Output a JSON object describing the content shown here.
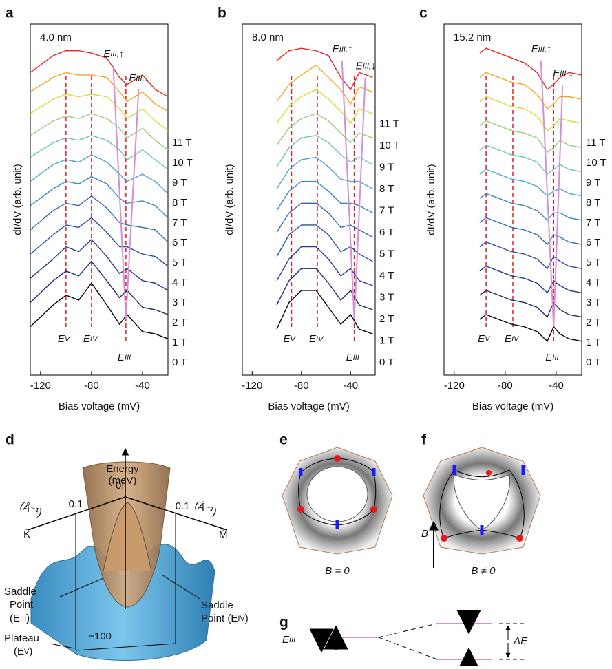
{
  "chart_data": [
    {
      "type": "line",
      "label": "a",
      "annotation": "4.0 nm",
      "xlabel": "Bias voltage (mV)",
      "ylabel": "dI/dV (arb. unit)",
      "xlim": [
        -128,
        -20
      ],
      "xticks": [
        -120,
        -80,
        -40
      ],
      "ylim": [
        -1.5,
        13
      ],
      "x": [
        -128,
        -110,
        -100,
        -90,
        -80,
        -68,
        -58,
        -52,
        -40,
        -30,
        -20
      ],
      "series": [
        {
          "name": "0 T",
          "color": "#000000",
          "values": [
            0.5,
            1.4,
            1.8,
            1.6,
            2.3,
            1.4,
            0.6,
            1.0,
            0.3,
            0.2,
            0.0
          ]
        },
        {
          "name": "1 T",
          "color": "#1b2a6b",
          "values": [
            1.5,
            2.4,
            2.8,
            2.6,
            3.2,
            2.4,
            1.7,
            2.0,
            1.3,
            1.2,
            1.0
          ]
        },
        {
          "name": "2 T",
          "color": "#22398a",
          "values": [
            2.5,
            3.3,
            3.8,
            3.6,
            4.1,
            3.4,
            2.7,
            2.9,
            2.4,
            2.3,
            2.0
          ]
        },
        {
          "name": "3 T",
          "color": "#2b4fa0",
          "values": [
            3.5,
            4.3,
            4.7,
            4.6,
            5.0,
            4.4,
            3.8,
            3.8,
            3.5,
            3.4,
            3.0
          ]
        },
        {
          "name": "4 T",
          "color": "#3467b6",
          "values": [
            4.5,
            5.3,
            5.6,
            5.5,
            5.9,
            5.4,
            4.8,
            4.7,
            4.6,
            4.5,
            4.0
          ]
        },
        {
          "name": "5 T",
          "color": "#3c84c6",
          "values": [
            5.5,
            6.2,
            6.5,
            6.4,
            6.7,
            6.4,
            5.8,
            5.6,
            5.7,
            5.5,
            5.0
          ]
        },
        {
          "name": "6 T",
          "color": "#4fa4cf",
          "values": [
            6.5,
            7.2,
            7.4,
            7.3,
            7.6,
            7.3,
            6.8,
            6.5,
            6.8,
            6.5,
            6.0
          ]
        },
        {
          "name": "7 T",
          "color": "#6fc0c0",
          "values": [
            7.5,
            8.1,
            8.3,
            8.2,
            8.4,
            8.2,
            7.8,
            7.4,
            7.8,
            7.4,
            7.0
          ]
        },
        {
          "name": "8 T",
          "color": "#98cc7a",
          "values": [
            8.4,
            9.0,
            9.2,
            9.1,
            9.3,
            9.1,
            8.7,
            8.3,
            8.7,
            8.2,
            7.8
          ]
        },
        {
          "name": "9 T",
          "color": "#d5dc3a",
          "values": [
            9.3,
            9.9,
            10.1,
            10.0,
            10.1,
            10.0,
            9.5,
            9.1,
            9.5,
            9.0,
            8.6
          ]
        },
        {
          "name": "10 T",
          "color": "#f6a523",
          "values": [
            10.2,
            10.8,
            11.0,
            10.9,
            10.9,
            10.8,
            10.2,
            9.8,
            10.2,
            9.7,
            9.4
          ]
        },
        {
          "name": "11 T",
          "color": "#e6261f",
          "values": [
            11.0,
            11.7,
            11.9,
            11.9,
            11.8,
            11.6,
            10.8,
            10.5,
            10.9,
            10.3,
            10.0
          ]
        }
      ],
      "vlines": [
        {
          "x": -100,
          "label": "E",
          "sub": "V"
        },
        {
          "x": -80,
          "label": "E",
          "sub": "IV"
        },
        {
          "x": -53,
          "label": "E",
          "sub": "III"
        }
      ],
      "trends": [
        {
          "x": [
            -53,
            -63
          ],
          "y": [
            0.8,
            11.3
          ],
          "label": "E",
          "sub": "III,",
          "arrow": "↑"
        },
        {
          "x": [
            -53,
            -43
          ],
          "y": [
            0.8,
            10.3
          ],
          "label": "E",
          "sub": "III,",
          "arrow": "↓"
        }
      ]
    },
    {
      "type": "line",
      "label": "b",
      "annotation": "8.0 nm",
      "xlabel": "Bias voltage (mV)",
      "ylabel": "dI/dV (arb. unit)",
      "xlim": [
        -128,
        -20
      ],
      "xticks": [
        -120,
        -80,
        -40
      ],
      "ylim": [
        -1.5,
        13
      ],
      "x": [
        -100,
        -90,
        -80,
        -68,
        -58,
        -48,
        -40,
        -33,
        -22
      ],
      "series": [
        {
          "name": "0 T",
          "color": "#000000",
          "values": [
            0.4,
            1.5,
            2.0,
            2.0,
            1.3,
            0.6,
            1.0,
            0.4,
            0.2
          ]
        },
        {
          "name": "1 T",
          "color": "#1b2a6b",
          "values": [
            1.4,
            2.4,
            2.9,
            2.9,
            2.3,
            1.6,
            2.0,
            1.4,
            1.2
          ]
        },
        {
          "name": "2 T",
          "color": "#22398a",
          "values": [
            2.4,
            3.3,
            3.8,
            3.8,
            3.3,
            2.6,
            2.9,
            2.4,
            2.2
          ]
        },
        {
          "name": "3 T",
          "color": "#2b4fa0",
          "values": [
            3.4,
            4.3,
            4.7,
            4.7,
            4.3,
            3.6,
            3.8,
            3.5,
            3.2
          ]
        },
        {
          "name": "4 T",
          "color": "#3467b6",
          "values": [
            4.4,
            5.2,
            5.6,
            5.6,
            5.2,
            4.6,
            4.7,
            4.5,
            4.2
          ]
        },
        {
          "name": "5 T",
          "color": "#3c84c6",
          "values": [
            5.3,
            6.1,
            6.5,
            6.5,
            6.1,
            5.6,
            5.6,
            5.5,
            5.2
          ]
        },
        {
          "name": "6 T",
          "color": "#4fa4cf",
          "values": [
            6.2,
            7.0,
            7.4,
            7.5,
            7.1,
            6.6,
            6.5,
            6.5,
            6.2
          ]
        },
        {
          "name": "7 T",
          "color": "#6fc0c0",
          "values": [
            7.1,
            7.9,
            8.3,
            8.4,
            8.1,
            7.6,
            7.3,
            7.5,
            7.2
          ]
        },
        {
          "name": "8 T",
          "color": "#98cc7a",
          "values": [
            8.0,
            8.7,
            9.1,
            9.3,
            9.0,
            8.5,
            8.1,
            8.5,
            8.3
          ]
        },
        {
          "name": "9 T",
          "color": "#d5dc3a",
          "values": [
            8.9,
            9.6,
            10.0,
            10.3,
            9.9,
            9.4,
            8.9,
            9.5,
            9.3
          ]
        },
        {
          "name": "10 T",
          "color": "#f6a523",
          "values": [
            9.8,
            10.5,
            10.9,
            11.3,
            10.8,
            10.3,
            9.7,
            10.4,
            10.2
          ]
        },
        {
          "name": "11 T",
          "color": "#e6261f",
          "values": [
            11.5,
            11.9,
            12.0,
            11.9,
            11.7,
            10.8,
            10.3,
            11.0,
            10.8
          ]
        }
      ],
      "vlines": [
        {
          "x": -88,
          "label": "E",
          "sub": "V"
        },
        {
          "x": -67,
          "label": "E",
          "sub": "IV"
        },
        {
          "x": -37,
          "label": "E",
          "sub": "III"
        }
      ],
      "trends": [
        {
          "x": [
            -37,
            -47
          ],
          "y": [
            0.8,
            11.5
          ],
          "label": "E",
          "sub": "III,",
          "arrow": "↑"
        },
        {
          "x": [
            -37,
            -28
          ],
          "y": [
            0.8,
            10.8
          ],
          "label": "E",
          "sub": "III,",
          "arrow": "↓"
        }
      ]
    },
    {
      "type": "line",
      "label": "c",
      "annotation": "15.2 nm",
      "xlabel": "Bias voltage (mV)",
      "ylabel": "dI/dV (arb. unit)",
      "xlim": [
        -128,
        -20
      ],
      "xticks": [
        -120,
        -80,
        -40
      ],
      "ylim": [
        -1.5,
        13
      ],
      "x": [
        -100,
        -95,
        -85,
        -75,
        -65,
        -55,
        -47,
        -42,
        -37,
        -30,
        -20
      ],
      "series": [
        {
          "name": "0 T",
          "color": "#000000",
          "values": [
            0.8,
            1.0,
            0.8,
            0.6,
            0.5,
            0.3,
            -0.1,
            0.5,
            0.2,
            0.0,
            -0.1
          ]
        },
        {
          "name": "1 T",
          "color": "#1b2a6b",
          "values": [
            1.8,
            2.0,
            1.8,
            1.6,
            1.5,
            1.3,
            0.9,
            1.5,
            1.2,
            1.0,
            0.9
          ]
        },
        {
          "name": "2 T",
          "color": "#22398a",
          "values": [
            2.8,
            3.0,
            2.8,
            2.6,
            2.5,
            2.3,
            1.9,
            2.4,
            2.2,
            2.0,
            1.9
          ]
        },
        {
          "name": "3 T",
          "color": "#2b4fa0",
          "values": [
            3.8,
            4.0,
            3.8,
            3.6,
            3.5,
            3.3,
            2.9,
            3.4,
            3.2,
            3.0,
            2.9
          ]
        },
        {
          "name": "4 T",
          "color": "#3467b6",
          "values": [
            4.8,
            5.0,
            4.8,
            4.6,
            4.5,
            4.3,
            3.9,
            4.3,
            4.2,
            4.0,
            3.9
          ]
        },
        {
          "name": "5 T",
          "color": "#3c84c6",
          "values": [
            5.8,
            6.0,
            5.8,
            5.6,
            5.5,
            5.3,
            4.9,
            5.2,
            5.2,
            5.0,
            4.9
          ]
        },
        {
          "name": "6 T",
          "color": "#4fa4cf",
          "values": [
            6.8,
            7.0,
            6.8,
            6.6,
            6.5,
            6.3,
            5.9,
            6.1,
            6.2,
            6.0,
            5.9
          ]
        },
        {
          "name": "7 T",
          "color": "#6fc0c0",
          "values": [
            7.8,
            8.0,
            7.8,
            7.6,
            7.5,
            7.3,
            6.8,
            7.0,
            7.2,
            7.0,
            6.9
          ]
        },
        {
          "name": "8 T",
          "color": "#98cc7a",
          "values": [
            8.8,
            9.0,
            8.8,
            8.6,
            8.5,
            8.3,
            7.7,
            7.9,
            8.2,
            8.0,
            7.9
          ]
        },
        {
          "name": "9 T",
          "color": "#d5dc3a",
          "values": [
            9.8,
            10.0,
            9.8,
            9.6,
            9.5,
            9.2,
            8.6,
            8.8,
            9.1,
            9.0,
            8.9
          ]
        },
        {
          "name": "10 T",
          "color": "#f6a523",
          "values": [
            10.8,
            11.0,
            10.8,
            10.6,
            10.5,
            10.1,
            9.5,
            9.7,
            10.0,
            10.0,
            9.9
          ]
        },
        {
          "name": "11 T",
          "color": "#e6261f",
          "values": [
            11.8,
            12.0,
            11.8,
            11.6,
            11.4,
            11.0,
            10.3,
            10.5,
            10.8,
            11.0,
            10.9
          ]
        }
      ],
      "vlines": [
        {
          "x": -95,
          "label": "E",
          "sub": "V"
        },
        {
          "x": -74,
          "label": "E",
          "sub": "IV"
        },
        {
          "x": -42,
          "label": "E",
          "sub": "III"
        }
      ],
      "trends": [
        {
          "x": [
            -42,
            -52
          ],
          "y": [
            0.5,
            11.5
          ],
          "label": "E",
          "sub": "III,",
          "arrow": "↑"
        },
        {
          "x": [
            -42,
            -35
          ],
          "y": [
            0.5,
            10.5
          ],
          "label": "E",
          "sub": "III,",
          "arrow": "↓"
        }
      ]
    }
  ],
  "diagrams": {
    "d": {
      "label": "d",
      "energy": "Energy",
      "energy_unit": "(meV)",
      "origin": "0",
      "gamma": "Γ̄",
      "k_tick": "0.1",
      "m_tick": "0.1",
      "k_unit": "(Å⁻¹)",
      "m_unit": "(Å⁻¹)",
      "k": "K̄",
      "m": "M̄",
      "bottom_tick": "−100",
      "saddle_iii": {
        "line1": "Saddle",
        "line2": "Point",
        "open": "(E",
        "sub": "III",
        "close": ")"
      },
      "plateau": {
        "line1": "Plateau",
        "open": "(E",
        "sub": "V",
        "close": ")"
      },
      "saddle_iv": {
        "line1": "Saddle",
        "open": "Point (E",
        "sub": "IV",
        "close": ")"
      }
    },
    "e": {
      "label": "e",
      "caption": "B = 0"
    },
    "f": {
      "label": "f",
      "caption": "B ≠ 0",
      "field": "B"
    },
    "g": {
      "label": "g",
      "level": "E",
      "level_sub": "III",
      "gap": "ΔE"
    }
  }
}
